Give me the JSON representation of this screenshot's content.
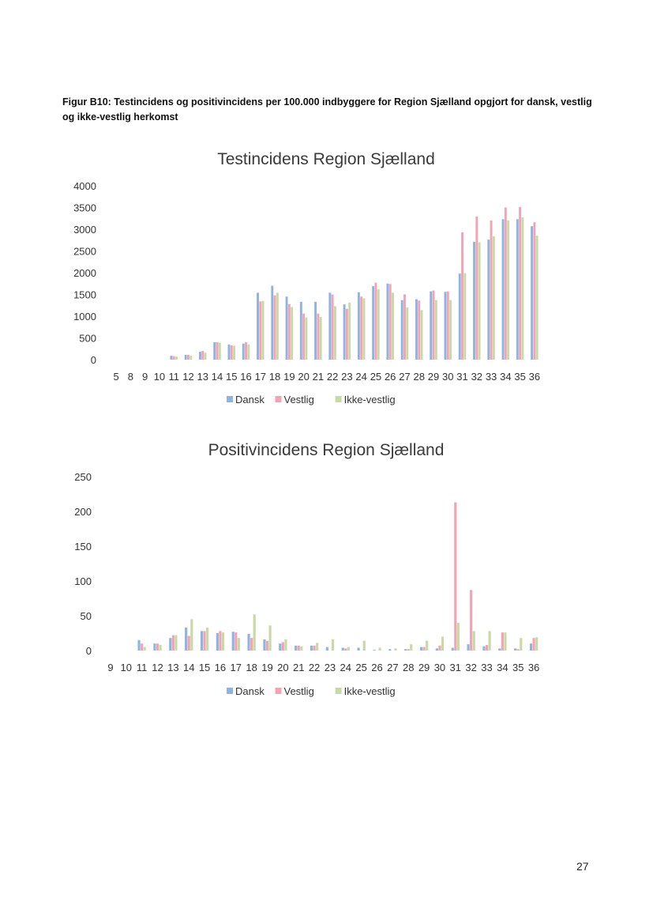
{
  "caption": "Figur B10: Testincidens og positivincidens per 100.000 indbyggere for Region Sjælland opgjort for dansk, vestlig og ikke-vestlig herkomst",
  "page_number": "27",
  "colors": {
    "Dansk": "#8db4e2",
    "Vestlig": "#f2a4b4",
    "Ikke-vestlig": "#c9d9a6"
  },
  "chart_data": [
    {
      "type": "bar",
      "title": "Testincidens Region Sjælland",
      "xlabel": "",
      "ylabel": "",
      "ylim": [
        0,
        4000
      ],
      "yticks": [
        0,
        500,
        1000,
        1500,
        2000,
        2500,
        3000,
        3500,
        4000
      ],
      "grid": false,
      "legend": "bottom",
      "categories": [
        "5",
        "8",
        "9",
        "10",
        "11",
        "12",
        "13",
        "14",
        "15",
        "16",
        "17",
        "18",
        "19",
        "20",
        "21",
        "22",
        "23",
        "24",
        "25",
        "26",
        "27",
        "28",
        "29",
        "30",
        "31",
        "32",
        "33",
        "34",
        "35",
        "36"
      ],
      "series": [
        {
          "name": "Dansk",
          "values": [
            0,
            0,
            0,
            0,
            90,
            110,
            180,
            400,
            350,
            370,
            1540,
            1700,
            1450,
            1330,
            1330,
            1540,
            1270,
            1550,
            1690,
            1750,
            1370,
            1390,
            1570,
            1560,
            1980,
            2710,
            2760,
            3230,
            3230,
            3070
          ]
        },
        {
          "name": "Vestlig",
          "values": [
            0,
            0,
            0,
            0,
            80,
            110,
            200,
            400,
            330,
            400,
            1340,
            1480,
            1280,
            1060,
            1060,
            1500,
            1170,
            1450,
            1770,
            1740,
            1500,
            1360,
            1590,
            1570,
            2930,
            3290,
            3200,
            3500,
            3510,
            3160
          ]
        },
        {
          "name": "Ikke-vestlig",
          "values": [
            0,
            0,
            0,
            0,
            70,
            90,
            160,
            390,
            320,
            350,
            1350,
            1540,
            1210,
            970,
            980,
            1230,
            1310,
            1410,
            1620,
            1540,
            1200,
            1140,
            1370,
            1370,
            1990,
            2700,
            2840,
            3200,
            3270,
            2850
          ]
        }
      ]
    },
    {
      "type": "bar",
      "title": "Positivincidens Region Sjælland",
      "xlabel": "",
      "ylabel": "",
      "ylim": [
        0,
        250
      ],
      "yticks": [
        0,
        50,
        100,
        150,
        200,
        250
      ],
      "grid": false,
      "legend": "bottom",
      "categories": [
        "9",
        "10",
        "11",
        "12",
        "13",
        "14",
        "15",
        "16",
        "17",
        "18",
        "19",
        "20",
        "21",
        "22",
        "23",
        "24",
        "25",
        "26",
        "27",
        "28",
        "29",
        "30",
        "31",
        "32",
        "33",
        "34",
        "35",
        "36"
      ],
      "series": [
        {
          "name": "Dansk",
          "values": [
            0,
            0,
            15,
            10,
            18,
            33,
            28,
            25,
            27,
            24,
            16,
            10,
            7,
            7,
            5,
            4,
            4,
            1,
            2,
            2,
            5,
            3,
            4,
            9,
            6,
            3,
            3,
            10
          ]
        },
        {
          "name": "Vestlig",
          "values": [
            0,
            0,
            10,
            10,
            22,
            21,
            28,
            28,
            26,
            18,
            14,
            12,
            7,
            7,
            0,
            3,
            0,
            0,
            0,
            2,
            5,
            7,
            213,
            87,
            8,
            26,
            2,
            18
          ]
        },
        {
          "name": "Ikke-vestlig",
          "values": [
            0,
            0,
            5,
            8,
            22,
            45,
            33,
            26,
            18,
            52,
            36,
            16,
            6,
            11,
            16,
            5,
            14,
            4,
            3,
            9,
            14,
            20,
            40,
            28,
            28,
            26,
            18,
            19
          ]
        }
      ]
    }
  ]
}
